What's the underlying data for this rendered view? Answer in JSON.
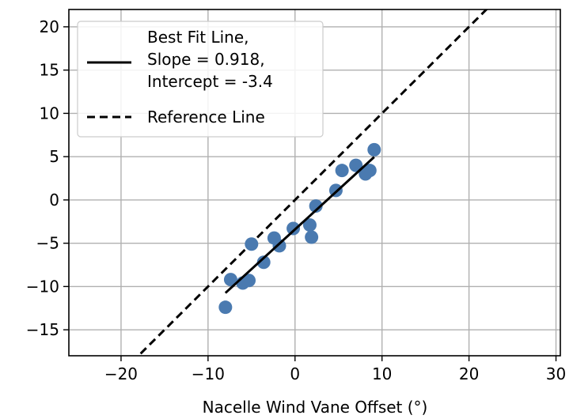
{
  "chart_data": {
    "type": "scatter",
    "xlabel": "Nacelle Wind Vane Offset (°)",
    "ylabel": "",
    "xlim": [
      -26,
      30.5
    ],
    "ylim": [
      -18,
      22
    ],
    "x_ticks": [
      -20,
      -10,
      0,
      10,
      20,
      30
    ],
    "y_ticks": [
      -15,
      -10,
      -5,
      0,
      5,
      10,
      15,
      20
    ],
    "x_tick_labels": [
      "−20",
      "−10",
      "0",
      "10",
      "20",
      "30"
    ],
    "y_tick_labels": [
      "−15",
      "−10",
      "−5",
      "0",
      "5",
      "10",
      "15",
      "20"
    ],
    "grid": true,
    "legend_position": "top-left",
    "points": {
      "color": "#4a7ab0",
      "x": [
        -8.0,
        -7.4,
        -6.0,
        -5.3,
        -5.0,
        -3.6,
        -2.4,
        -1.8,
        -0.2,
        1.7,
        1.9,
        2.4,
        4.7,
        5.4,
        7.0,
        8.1,
        8.6,
        9.1
      ],
      "y": [
        -12.4,
        -9.2,
        -9.6,
        -9.3,
        -5.1,
        -7.2,
        -4.4,
        -5.3,
        -3.3,
        -2.9,
        -4.3,
        -0.7,
        1.1,
        3.4,
        4.0,
        3.0,
        3.4,
        5.8
      ]
    },
    "lines": [
      {
        "key": "best_fit",
        "style": "solid",
        "color": "#000000",
        "x": [
          -8.0,
          9.1
        ],
        "slope": 0.918,
        "intercept": -3.4,
        "legend": [
          "Best Fit Line,",
          "Slope = 0.918,",
          "Intercept = -3.4"
        ]
      },
      {
        "key": "reference",
        "style": "dashed",
        "color": "#000000",
        "x": [
          -26,
          30.5
        ],
        "slope": 1,
        "intercept": 0,
        "legend": [
          "Reference Line"
        ]
      }
    ]
  }
}
